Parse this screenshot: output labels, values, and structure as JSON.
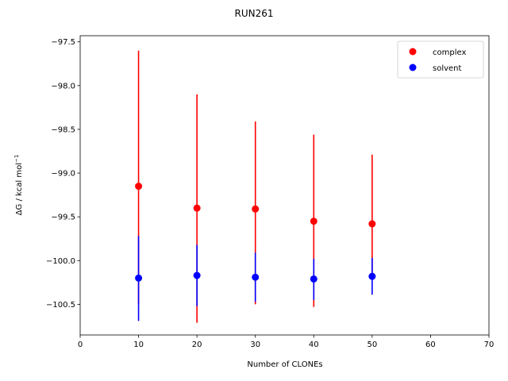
{
  "chart_data": {
    "type": "scatter",
    "title": "RUN261",
    "xlabel": "Number of CLONEs",
    "ylabel_main": "ΔG / kcal mol",
    "ylabel_sup": "−1",
    "xlim": [
      0,
      70
    ],
    "ylim": [
      -100.85,
      -97.43
    ],
    "xticks": [
      0,
      10,
      20,
      30,
      40,
      50,
      60,
      70
    ],
    "yticks": [
      -100.5,
      -100.0,
      -99.5,
      -99.0,
      -98.5,
      -98.0,
      -97.5
    ],
    "x": [
      10,
      20,
      30,
      40,
      50
    ],
    "series": [
      {
        "name": "complex",
        "color": "#ff0000",
        "values": [
          -99.15,
          -99.4,
          -99.41,
          -99.55,
          -99.58
        ],
        "err_low": [
          -100.5,
          -100.71,
          -100.5,
          -100.53,
          -100.18
        ],
        "err_high": [
          -97.6,
          -98.1,
          -98.41,
          -98.56,
          -98.79
        ]
      },
      {
        "name": "solvent",
        "color": "#0000ff",
        "values": [
          -100.2,
          -100.17,
          -100.19,
          -100.21,
          -100.18
        ],
        "err_low": [
          -100.69,
          -100.52,
          -100.47,
          -100.45,
          -100.39
        ],
        "err_high": [
          -99.72,
          -99.82,
          -99.91,
          -99.98,
          -99.97
        ]
      }
    ],
    "legend": "top-right",
    "grid": false
  }
}
